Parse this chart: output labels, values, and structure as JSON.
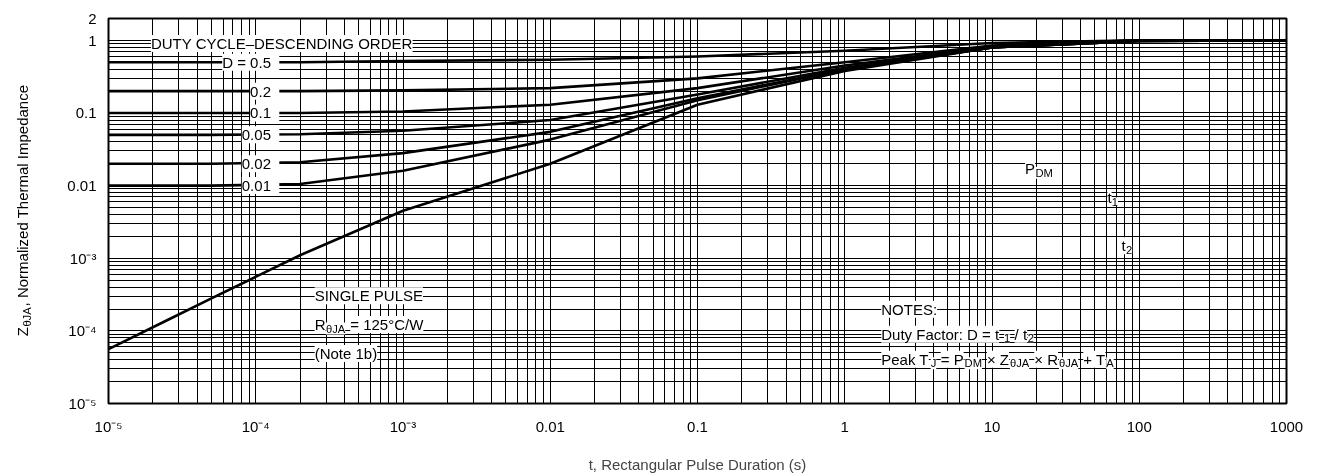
{
  "chart_data": {
    "type": "line",
    "xlabel": "t, Rectangular Pulse Duration (s)",
    "ylabel": "Z$_{θJA}$, Normalized Thermal Impedance",
    "log": "xy",
    "grid": true,
    "line_style": "solid",
    "marker": "none",
    "x": [
      1e-05,
      2.5e-05,
      5e-05,
      0.0002,
      0.001,
      0.01,
      0.1,
      1,
      10,
      100,
      1000
    ],
    "xlim": [
      1e-05,
      1000
    ],
    "xticks": [
      {
        "value": 1e-05,
        "label": "10⁻⁵"
      },
      {
        "value": 0.0001,
        "label": "10⁻⁴"
      },
      {
        "value": 0.001,
        "label": "10⁻³"
      },
      0.01,
      0.1,
      1,
      10,
      100,
      1000
    ],
    "ylim": [
      1e-05,
      2
    ],
    "yticks": [
      {
        "value": 1e-05,
        "label": "10⁻⁵"
      },
      {
        "value": 0.0001,
        "label": "10⁻⁴"
      },
      {
        "value": 0.001,
        "label": "10⁻³"
      },
      0.01,
      0.1,
      1,
      2
    ],
    "series": [
      {
        "name": "D = 0.5",
        "color": "#000000",
        "values": [
          0.5,
          0.5,
          0.5,
          0.5,
          0.52,
          0.54,
          0.6,
          0.72,
          0.92,
          1.0,
          1.0
        ]
      },
      {
        "name": "0.2",
        "color": "#000000",
        "values": [
          0.2,
          0.2,
          0.2,
          0.2,
          0.205,
          0.22,
          0.3,
          0.5,
          0.85,
          1.0,
          1.0
        ]
      },
      {
        "name": "0.1",
        "color": "#000000",
        "values": [
          0.1,
          0.1,
          0.1,
          0.1,
          0.105,
          0.13,
          0.22,
          0.45,
          0.82,
          1.0,
          1.0
        ]
      },
      {
        "name": "0.05",
        "color": "#000000",
        "values": [
          0.05,
          0.05,
          0.05,
          0.051,
          0.057,
          0.08,
          0.18,
          0.42,
          0.8,
          0.98,
          1.0
        ]
      },
      {
        "name": "0.02",
        "color": "#000000",
        "values": [
          0.02,
          0.02,
          0.02,
          0.021,
          0.028,
          0.055,
          0.16,
          0.4,
          0.8,
          0.98,
          1.0
        ]
      },
      {
        "name": "0.01",
        "color": "#000000",
        "values": [
          0.01,
          0.01,
          0.01,
          0.0105,
          0.016,
          0.043,
          0.15,
          0.4,
          0.8,
          0.98,
          1.0
        ]
      },
      {
        "name": "SINGLE PULSE",
        "color": "#000000",
        "values": [
          5.6e-05,
          0.00014,
          0.00028,
          0.0011,
          0.0045,
          0.02,
          0.13,
          0.38,
          0.8,
          0.98,
          1.0
        ]
      }
    ],
    "annotations": [
      "DUTY CYCLE–DESCENDING ORDER",
      "R$_{θJA}$ = 125°C/W",
      "(Note 1b)",
      "NOTES:",
      "Duty Factor: D = t$_{1}$ / t$_{2}$",
      "Peak T$_{J}$ = P$_{DM}$ × Z$_{θJA}$ × R$_{θJA}$ + T$_{A}$",
      "P$_{DM}$",
      "t$_{1}$",
      "t$_{2}$"
    ]
  }
}
